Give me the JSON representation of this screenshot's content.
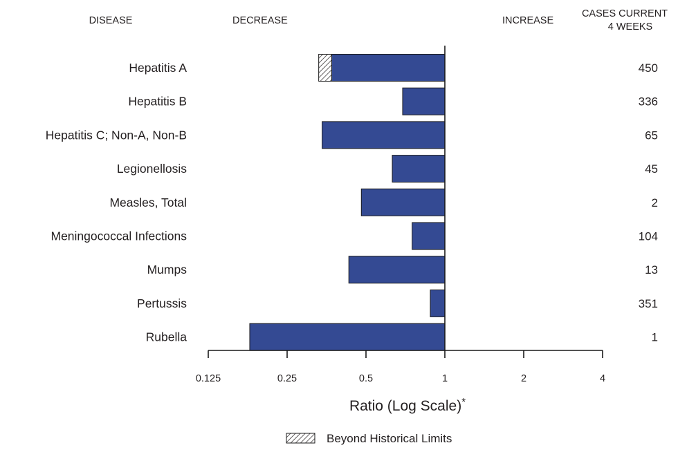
{
  "headers": {
    "disease": "DISEASE",
    "decrease": "DECREASE",
    "increase": "INCREASE",
    "cases_line1": "CASES CURRENT",
    "cases_line2": "4 WEEKS"
  },
  "legend": {
    "label": "Beyond Historical Limits"
  },
  "colors": {
    "bar": "#344a93",
    "outline": "#1a1a1a",
    "hatch": "#231f20"
  },
  "chart_data": {
    "type": "bar",
    "orientation": "horizontal",
    "x_scale": "log2",
    "xlabel": "Ratio (Log Scale)",
    "xlabel_note": "*",
    "xlim": [
      0.125,
      4
    ],
    "xticks": [
      0.125,
      0.25,
      0.5,
      1,
      2,
      4
    ],
    "xtick_labels": [
      "0.125",
      "0.25",
      "0.5",
      "1",
      "2",
      "4"
    ],
    "baseline": 1,
    "categories": [
      "Hepatitis A",
      "Hepatitis B",
      "Hepatitis C; Non-A, Non-B",
      "Legionellosis",
      "Measles, Total",
      "Meningococcal Infections",
      "Mumps",
      "Pertussis",
      "Rubella"
    ],
    "values": [
      0.33,
      0.69,
      0.34,
      0.63,
      0.48,
      0.75,
      0.43,
      0.88,
      0.18
    ],
    "beyond_historical_limits": [
      0.37,
      null,
      null,
      null,
      null,
      null,
      null,
      null,
      null
    ],
    "cases_current_4_weeks": [
      "450",
      "336",
      "65",
      "45",
      "2",
      "104",
      "13",
      "351",
      "1"
    ]
  }
}
